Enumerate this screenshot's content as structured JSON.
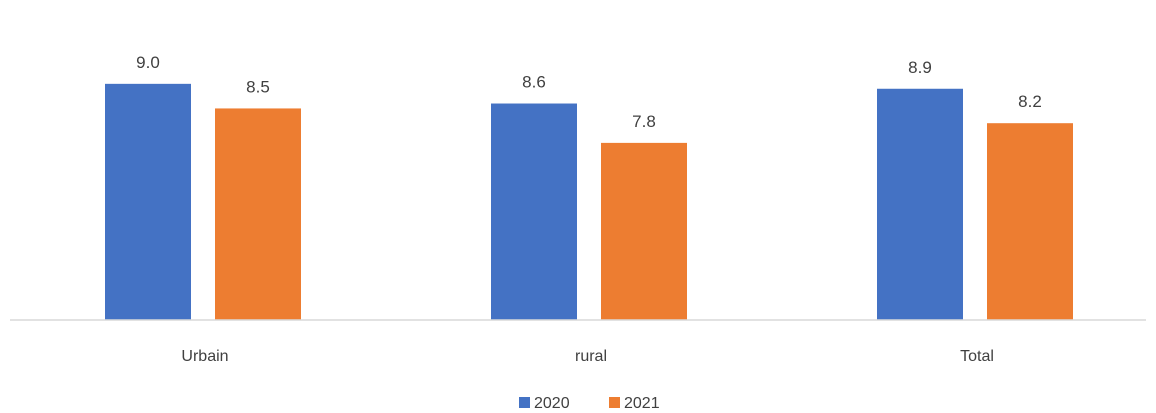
{
  "chart_data": {
    "type": "bar",
    "categories": [
      "Urbain",
      "rural",
      "Total"
    ],
    "series": [
      {
        "name": "2020",
        "values": [
          9.0,
          8.6,
          8.9
        ]
      },
      {
        "name": "2021",
        "values": [
          8.5,
          7.8,
          8.2
        ]
      }
    ],
    "data_labels": [
      [
        "9.0",
        "8.6",
        "8.9"
      ],
      [
        "8.5",
        "7.8",
        "8.2"
      ]
    ],
    "title": "",
    "xlabel": "",
    "ylabel": "",
    "y_axis_visible": false,
    "gridlines": false,
    "legend_position": "bottom",
    "colors": [
      "#4472c4",
      "#ed7d31"
    ],
    "label_color": "#404040",
    "axis_color": "#d9d9d9"
  }
}
